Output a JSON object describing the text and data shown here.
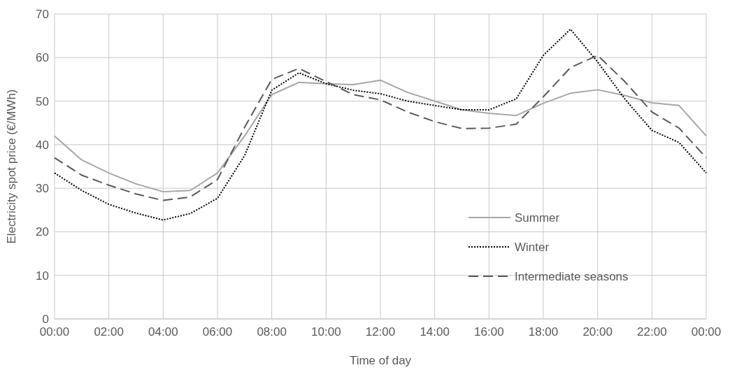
{
  "chart_data": {
    "type": "line",
    "xlabel": "Time of day",
    "ylabel": "Electricity spot price (€/MWh)",
    "x": [
      0,
      1,
      2,
      3,
      4,
      5,
      6,
      7,
      8,
      9,
      10,
      11,
      12,
      13,
      14,
      15,
      16,
      17,
      18,
      19,
      20,
      21,
      22,
      23,
      24
    ],
    "series": [
      {
        "name": "Summer",
        "color": "#a6a6a6",
        "line_style": "solid",
        "values": [
          42,
          36.5,
          33.5,
          31,
          29.2,
          29.5,
          33.5,
          42,
          51.5,
          54.3,
          54,
          53.8,
          54.8,
          52,
          50,
          48,
          47.2,
          46.7,
          49.5,
          51.8,
          52.6,
          51.3,
          49.6,
          49,
          42
        ]
      },
      {
        "name": "Winter",
        "color": "#000000",
        "line_style": "dotted",
        "values": [
          33.5,
          29.5,
          26.3,
          24.3,
          22.7,
          24.2,
          27.7,
          37.5,
          52.5,
          56.5,
          54,
          52.5,
          51.7,
          50,
          49,
          48,
          48,
          50.5,
          60.5,
          66.5,
          59,
          50.5,
          43.3,
          40.5,
          33.5
        ]
      },
      {
        "name": "Intermediate seasons",
        "color": "#595959",
        "line_style": "dashed",
        "values": [
          37,
          33,
          30.7,
          28.7,
          27.2,
          28,
          32,
          44,
          55,
          57.5,
          54.5,
          51.5,
          50.3,
          47.5,
          45.3,
          43.7,
          43.8,
          44.7,
          51,
          57.7,
          60.5,
          54.5,
          47.5,
          43.8,
          37
        ]
      }
    ],
    "xlim": [
      0,
      24
    ],
    "xticks": [
      {
        "value": 0,
        "label": "00:00"
      },
      {
        "value": 2,
        "label": "02:00"
      },
      {
        "value": 4,
        "label": "04:00"
      },
      {
        "value": 6,
        "label": "06:00"
      },
      {
        "value": 8,
        "label": "08:00"
      },
      {
        "value": 10,
        "label": "10:00"
      },
      {
        "value": 12,
        "label": "12:00"
      },
      {
        "value": 14,
        "label": "14:00"
      },
      {
        "value": 16,
        "label": "16:00"
      },
      {
        "value": 18,
        "label": "18:00"
      },
      {
        "value": 20,
        "label": "20:00"
      },
      {
        "value": 22,
        "label": "22:00"
      },
      {
        "value": 24,
        "label": "00:00"
      }
    ],
    "ylim": [
      0,
      70
    ],
    "yticks": [
      0,
      10,
      20,
      30,
      40,
      50,
      60,
      70
    ],
    "grid": true,
    "legend": "bottom right",
    "marker": "none"
  }
}
